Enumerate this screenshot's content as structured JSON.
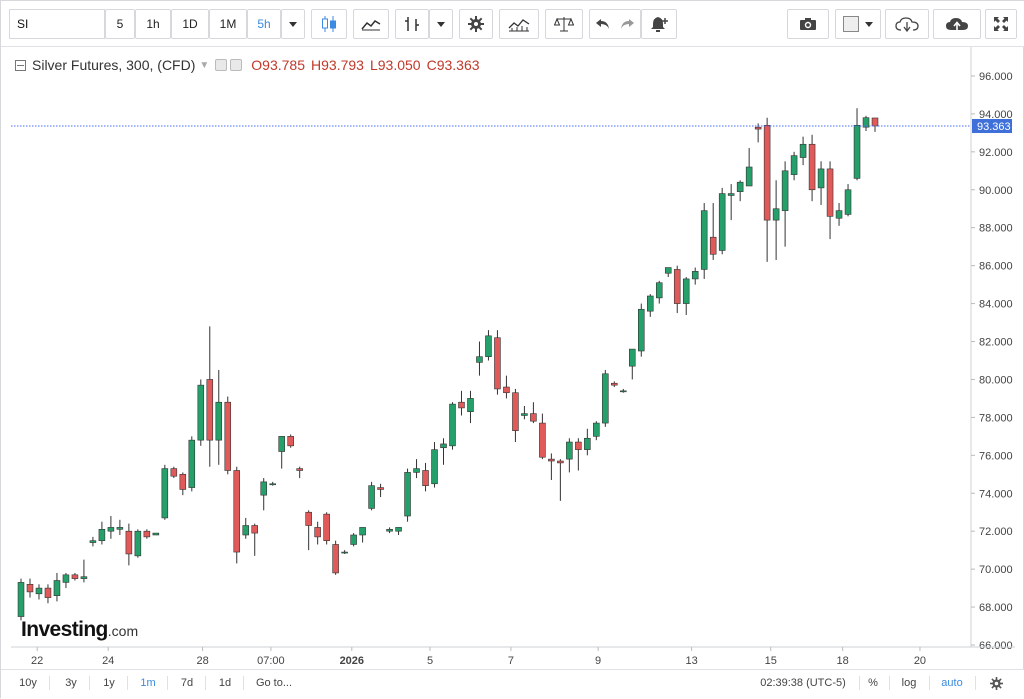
{
  "toolbar": {
    "symbol_value": "SI",
    "intervals": [
      "5",
      "1h",
      "1D",
      "1M",
      "5h"
    ],
    "active_interval": "5h",
    "icons": [
      "caret-down-icon",
      "candles-icon",
      "area-chart-icon",
      "bars-icon",
      "caret-down-icon",
      "gear-icon",
      "indicators-icon",
      "compare-scale-icon",
      "undo-icon",
      "redo-icon",
      "alert-icon",
      "camera-icon",
      "color-square-icon",
      "caret-down-icon",
      "cloud-download-icon",
      "cloud-upload-icon",
      "fullscreen-icon"
    ]
  },
  "legend": {
    "title": "Silver Futures, 300, (CFD)",
    "o_label": "O",
    "o_value": "93.785",
    "h_label": "H",
    "h_value": "93.793",
    "l_label": "L",
    "l_value": "93.050",
    "c_label": "C",
    "c_value": "93.363"
  },
  "chart_data": {
    "type": "candlestick",
    "title": "Silver Futures, 300, (CFD)",
    "ylim": [
      66,
      97
    ],
    "y_ticks": [
      "66.000",
      "68.000",
      "70.000",
      "72.000",
      "74.000",
      "76.000",
      "78.000",
      "80.000",
      "82.000",
      "84.000",
      "86.000",
      "88.000",
      "90.000",
      "92.000",
      "94.000",
      "96.000"
    ],
    "x_ticks": [
      "22",
      "24",
      "28",
      "07:00",
      "2026",
      "5",
      "7",
      "9",
      "13",
      "15",
      "18",
      "20"
    ],
    "bold_x_tick": "2026",
    "last_price": "93.363",
    "last_price_value": 93.363,
    "colors": {
      "up": "#26a06a",
      "down": "#e05a5a",
      "price_line": "#4a6cf7",
      "label_bg": "#3f6fd8"
    },
    "candles": [
      {
        "o": 67.5,
        "h": 69.5,
        "l": 67.3,
        "c": 69.3
      },
      {
        "o": 69.2,
        "h": 69.5,
        "l": 68.5,
        "c": 68.8
      },
      {
        "o": 68.7,
        "h": 69.2,
        "l": 68.4,
        "c": 69.0
      },
      {
        "o": 69.0,
        "h": 69.2,
        "l": 68.2,
        "c": 68.5
      },
      {
        "o": 68.6,
        "h": 69.8,
        "l": 68.3,
        "c": 69.4
      },
      {
        "o": 69.3,
        "h": 69.8,
        "l": 69.0,
        "c": 69.7
      },
      {
        "o": 69.7,
        "h": 69.8,
        "l": 69.4,
        "c": 69.5
      },
      {
        "o": 69.5,
        "h": 70.5,
        "l": 69.3,
        "c": 69.6
      },
      {
        "o": 71.4,
        "h": 71.7,
        "l": 71.2,
        "c": 71.5
      },
      {
        "o": 71.5,
        "h": 72.5,
        "l": 71.3,
        "c": 72.1
      },
      {
        "o": 72.0,
        "h": 72.8,
        "l": 71.6,
        "c": 72.2
      },
      {
        "o": 72.1,
        "h": 72.6,
        "l": 71.8,
        "c": 72.2
      },
      {
        "o": 72.0,
        "h": 72.4,
        "l": 70.2,
        "c": 70.8
      },
      {
        "o": 70.7,
        "h": 72.1,
        "l": 70.6,
        "c": 72.0
      },
      {
        "o": 72.0,
        "h": 72.1,
        "l": 71.6,
        "c": 71.7
      },
      {
        "o": 71.8,
        "h": 71.9,
        "l": 71.8,
        "c": 71.9
      },
      {
        "o": 72.7,
        "h": 75.5,
        "l": 72.6,
        "c": 75.3
      },
      {
        "o": 75.3,
        "h": 75.4,
        "l": 74.8,
        "c": 74.9
      },
      {
        "o": 75.0,
        "h": 75.1,
        "l": 73.9,
        "c": 74.2
      },
      {
        "o": 74.3,
        "h": 77.0,
        "l": 74.1,
        "c": 76.8
      },
      {
        "o": 76.8,
        "h": 80.0,
        "l": 76.5,
        "c": 79.7
      },
      {
        "o": 80.0,
        "h": 82.8,
        "l": 75.4,
        "c": 76.8
      },
      {
        "o": 76.8,
        "h": 80.5,
        "l": 75.5,
        "c": 78.8
      },
      {
        "o": 78.8,
        "h": 79.1,
        "l": 75.0,
        "c": 75.2
      },
      {
        "o": 75.2,
        "h": 75.4,
        "l": 70.3,
        "c": 70.9
      },
      {
        "o": 71.8,
        "h": 72.7,
        "l": 71.6,
        "c": 72.3
      },
      {
        "o": 72.3,
        "h": 72.4,
        "l": 70.7,
        "c": 71.9
      },
      {
        "o": 73.9,
        "h": 74.8,
        "l": 73.1,
        "c": 74.6
      },
      {
        "o": 74.5,
        "h": 74.6,
        "l": 74.4,
        "c": 74.5
      },
      {
        "o": 76.2,
        "h": 77.0,
        "l": 75.3,
        "c": 77.0
      },
      {
        "o": 77.0,
        "h": 77.1,
        "l": 76.4,
        "c": 76.5
      },
      {
        "o": 75.3,
        "h": 75.4,
        "l": 74.8,
        "c": 75.2
      },
      {
        "o": 73.0,
        "h": 73.1,
        "l": 71.0,
        "c": 72.3
      },
      {
        "o": 72.2,
        "h": 72.5,
        "l": 71.3,
        "c": 71.7
      },
      {
        "o": 72.9,
        "h": 73.0,
        "l": 71.3,
        "c": 71.5
      },
      {
        "o": 71.3,
        "h": 71.5,
        "l": 69.7,
        "c": 69.8
      },
      {
        "o": 70.9,
        "h": 71.0,
        "l": 70.8,
        "c": 70.9
      },
      {
        "o": 71.3,
        "h": 71.9,
        "l": 71.2,
        "c": 71.8
      },
      {
        "o": 71.8,
        "h": 72.1,
        "l": 71.4,
        "c": 72.2
      },
      {
        "o": 73.2,
        "h": 74.6,
        "l": 73.1,
        "c": 74.4
      },
      {
        "o": 74.3,
        "h": 74.5,
        "l": 73.8,
        "c": 74.2
      },
      {
        "o": 72.0,
        "h": 72.2,
        "l": 71.9,
        "c": 72.1
      },
      {
        "o": 72.0,
        "h": 72.2,
        "l": 71.8,
        "c": 72.2
      },
      {
        "o": 72.8,
        "h": 75.3,
        "l": 72.5,
        "c": 75.1
      },
      {
        "o": 75.1,
        "h": 75.8,
        "l": 74.8,
        "c": 75.3
      },
      {
        "o": 75.2,
        "h": 75.6,
        "l": 74.1,
        "c": 74.4
      },
      {
        "o": 74.5,
        "h": 76.7,
        "l": 74.3,
        "c": 76.3
      },
      {
        "o": 76.4,
        "h": 76.9,
        "l": 75.5,
        "c": 76.6
      },
      {
        "o": 76.5,
        "h": 78.8,
        "l": 76.3,
        "c": 78.7
      },
      {
        "o": 78.8,
        "h": 79.4,
        "l": 78.1,
        "c": 78.5
      },
      {
        "o": 78.3,
        "h": 79.4,
        "l": 77.7,
        "c": 79.0
      },
      {
        "o": 80.9,
        "h": 82.0,
        "l": 80.2,
        "c": 81.2
      },
      {
        "o": 81.2,
        "h": 82.6,
        "l": 81.0,
        "c": 82.3
      },
      {
        "o": 82.2,
        "h": 82.6,
        "l": 79.2,
        "c": 79.5
      },
      {
        "o": 79.6,
        "h": 80.2,
        "l": 79.0,
        "c": 79.3
      },
      {
        "o": 79.3,
        "h": 79.5,
        "l": 76.7,
        "c": 77.3
      },
      {
        "o": 78.1,
        "h": 78.6,
        "l": 77.9,
        "c": 78.2
      },
      {
        "o": 78.2,
        "h": 78.8,
        "l": 77.7,
        "c": 77.8
      },
      {
        "o": 77.7,
        "h": 78.2,
        "l": 75.8,
        "c": 75.9
      },
      {
        "o": 75.8,
        "h": 76.1,
        "l": 74.7,
        "c": 75.7
      },
      {
        "o": 75.7,
        "h": 75.8,
        "l": 73.6,
        "c": 75.6
      },
      {
        "o": 75.8,
        "h": 76.9,
        "l": 75.1,
        "c": 76.7
      },
      {
        "o": 76.7,
        "h": 76.9,
        "l": 75.2,
        "c": 76.3
      },
      {
        "o": 76.3,
        "h": 77.4,
        "l": 76.0,
        "c": 76.9
      },
      {
        "o": 77.0,
        "h": 77.8,
        "l": 76.8,
        "c": 77.7
      },
      {
        "o": 77.7,
        "h": 80.5,
        "l": 77.5,
        "c": 80.3
      },
      {
        "o": 79.8,
        "h": 79.9,
        "l": 79.6,
        "c": 79.7
      },
      {
        "o": 79.4,
        "h": 79.5,
        "l": 79.3,
        "c": 79.4
      },
      {
        "o": 80.7,
        "h": 81.6,
        "l": 80.0,
        "c": 81.6
      },
      {
        "o": 81.5,
        "h": 84.0,
        "l": 81.2,
        "c": 83.7
      },
      {
        "o": 83.6,
        "h": 84.5,
        "l": 83.3,
        "c": 84.4
      },
      {
        "o": 84.3,
        "h": 85.2,
        "l": 84.0,
        "c": 85.1
      },
      {
        "o": 85.6,
        "h": 85.9,
        "l": 85.4,
        "c": 85.9
      },
      {
        "o": 85.8,
        "h": 86.0,
        "l": 83.5,
        "c": 84.0
      },
      {
        "o": 84.0,
        "h": 85.4,
        "l": 83.4,
        "c": 85.3
      },
      {
        "o": 85.3,
        "h": 85.9,
        "l": 85.0,
        "c": 85.7
      },
      {
        "o": 85.8,
        "h": 89.3,
        "l": 85.3,
        "c": 88.9
      },
      {
        "o": 87.5,
        "h": 89.3,
        "l": 86.3,
        "c": 86.6
      },
      {
        "o": 86.8,
        "h": 90.1,
        "l": 86.6,
        "c": 89.8
      },
      {
        "o": 89.7,
        "h": 90.3,
        "l": 88.4,
        "c": 89.8
      },
      {
        "o": 89.9,
        "h": 90.5,
        "l": 89.4,
        "c": 90.4
      },
      {
        "o": 90.2,
        "h": 92.2,
        "l": 90.2,
        "c": 91.2
      },
      {
        "o": 93.3,
        "h": 93.5,
        "l": 92.5,
        "c": 93.2
      },
      {
        "o": 93.4,
        "h": 93.8,
        "l": 86.2,
        "c": 88.4
      },
      {
        "o": 88.4,
        "h": 90.5,
        "l": 86.3,
        "c": 89.0
      },
      {
        "o": 88.9,
        "h": 91.5,
        "l": 87.0,
        "c": 91.0
      },
      {
        "o": 90.8,
        "h": 92.0,
        "l": 90.5,
        "c": 91.8
      },
      {
        "o": 91.7,
        "h": 92.8,
        "l": 91.3,
        "c": 92.4
      },
      {
        "o": 92.4,
        "h": 92.9,
        "l": 89.4,
        "c": 90.0
      },
      {
        "o": 90.1,
        "h": 91.5,
        "l": 89.2,
        "c": 91.1
      },
      {
        "o": 91.1,
        "h": 91.5,
        "l": 87.4,
        "c": 88.6
      },
      {
        "o": 88.5,
        "h": 89.3,
        "l": 88.1,
        "c": 88.9
      },
      {
        "o": 88.7,
        "h": 90.3,
        "l": 88.6,
        "c": 90.0
      },
      {
        "o": 90.6,
        "h": 94.3,
        "l": 90.5,
        "c": 93.4
      },
      {
        "o": 93.3,
        "h": 93.9,
        "l": 93.1,
        "c": 93.8
      },
      {
        "o": 93.785,
        "h": 93.793,
        "l": 93.05,
        "c": 93.363
      }
    ]
  },
  "watermark": "Investing.com",
  "bottombar": {
    "ranges": [
      "10y",
      "3y",
      "1y",
      "1m",
      "7d",
      "1d"
    ],
    "active_range": "1m",
    "goto_label": "Go to...",
    "clock": "02:39:38 (UTC-5)",
    "percent_label": "%",
    "log_label": "log",
    "auto_label": "auto"
  }
}
